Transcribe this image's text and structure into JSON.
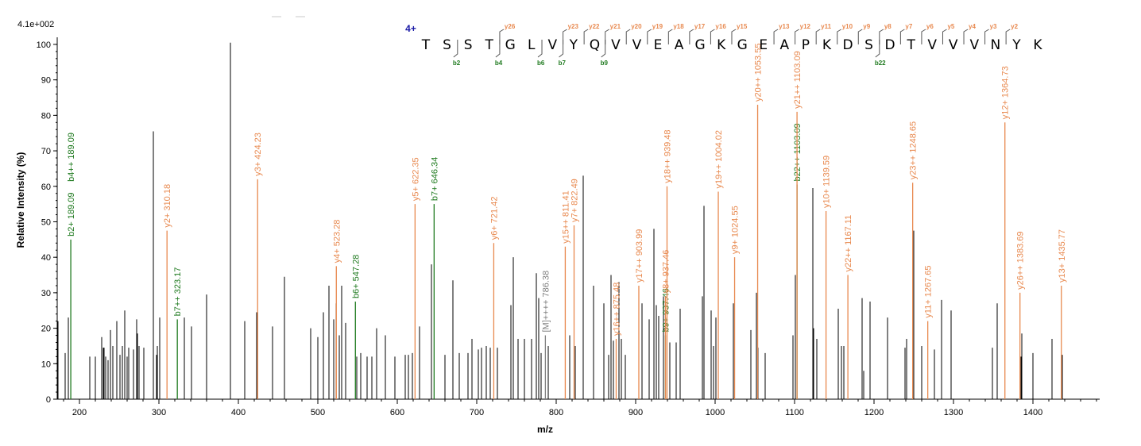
{
  "colors": {
    "unlabeled": "#000000",
    "y_ion": "#e8894f",
    "b_ion": "#1f7a1f",
    "precursor": "#808080",
    "charge": "#1a1aa6"
  },
  "header": {
    "max_intensity": "4.1e+002"
  },
  "peptide": {
    "charge": "4+",
    "sequence": [
      "T",
      "S",
      "S",
      "T",
      "G",
      "L",
      "V",
      "Y",
      "Q",
      "V",
      "V",
      "E",
      "A",
      "G",
      "K",
      "G",
      "E",
      "A",
      "P",
      "K",
      "D",
      "S",
      "D",
      "T",
      "V",
      "V",
      "V",
      "N",
      "Y",
      "K"
    ],
    "y_marks": [
      {
        "after": 4,
        "label": "y26"
      },
      {
        "after": 7,
        "label": "y23"
      },
      {
        "after": 8,
        "label": "y22"
      },
      {
        "after": 9,
        "label": "y21"
      },
      {
        "after": 10,
        "label": "y20"
      },
      {
        "after": 11,
        "label": "y19"
      },
      {
        "after": 12,
        "label": "y18"
      },
      {
        "after": 13,
        "label": "y17"
      },
      {
        "after": 14,
        "label": "y16"
      },
      {
        "after": 15,
        "label": "y15"
      },
      {
        "after": 17,
        "label": "y13"
      },
      {
        "after": 18,
        "label": "y12"
      },
      {
        "after": 19,
        "label": "y11"
      },
      {
        "after": 20,
        "label": "y10"
      },
      {
        "after": 21,
        "label": "y9"
      },
      {
        "after": 22,
        "label": "y8"
      },
      {
        "after": 23,
        "label": "y7"
      },
      {
        "after": 24,
        "label": "y6"
      },
      {
        "after": 25,
        "label": "y5"
      },
      {
        "after": 26,
        "label": "y4"
      },
      {
        "after": 27,
        "label": "y3"
      },
      {
        "after": 28,
        "label": "y2"
      }
    ],
    "b_marks": [
      {
        "after": 2,
        "label": "b2"
      },
      {
        "after": 4,
        "label": "b4"
      },
      {
        "after": 6,
        "label": "b6"
      },
      {
        "after": 7,
        "label": "b7"
      },
      {
        "after": 9,
        "label": "b9"
      },
      {
        "after": 22,
        "label": "b22"
      }
    ]
  },
  "chart_data": {
    "type": "bar",
    "xlabel": "m/z",
    "ylabel": "Relative   Intensity (%)",
    "xlim": [
      172,
      1484
    ],
    "ylim": [
      0,
      102
    ],
    "xticks": [
      200,
      300,
      400,
      500,
      600,
      700,
      800,
      900,
      1000,
      1100,
      1200,
      1300,
      1400
    ],
    "yticks": [
      0,
      10,
      20,
      30,
      40,
      50,
      60,
      70,
      80,
      90,
      100
    ],
    "labeled_peaks": [
      {
        "mz": 189.09,
        "intensity": 45,
        "ion": "b",
        "labels": [
          "b2+ 189.09",
          "b4++ 189.09"
        ]
      },
      {
        "mz": 310.18,
        "intensity": 47.5,
        "ion": "y",
        "labels": [
          "y2+ 310.18"
        ]
      },
      {
        "mz": 323.17,
        "intensity": 22.5,
        "ion": "b",
        "labels": [
          "b7++ 323.17"
        ]
      },
      {
        "mz": 424.23,
        "intensity": 62,
        "ion": "y",
        "labels": [
          "y3+ 424.23"
        ]
      },
      {
        "mz": 523.28,
        "intensity": 37.5,
        "ion": "y",
        "labels": [
          "y4+ 523.28"
        ]
      },
      {
        "mz": 547.28,
        "intensity": 27.5,
        "ion": "b",
        "labels": [
          "b6+ 547.28"
        ]
      },
      {
        "mz": 622.35,
        "intensity": 55,
        "ion": "y",
        "labels": [
          "y5+ 622.35"
        ]
      },
      {
        "mz": 646.34,
        "intensity": 55,
        "ion": "b",
        "labels": [
          "b7+ 646.34"
        ]
      },
      {
        "mz": 721.42,
        "intensity": 44,
        "ion": "y",
        "labels": [
          "y6+ 721.42"
        ]
      },
      {
        "mz": 786.38,
        "intensity": 18,
        "ion": "precursor",
        "labels": [
          "[M]++++ 786.38"
        ]
      },
      {
        "mz": 811.41,
        "intensity": 43,
        "ion": "y",
        "labels": [
          "y15++ 811.41"
        ]
      },
      {
        "mz": 822.49,
        "intensity": 49,
        "ion": "y",
        "labels": [
          "y7+ 822.49"
        ]
      },
      {
        "mz": 875.48,
        "intensity": 17,
        "ion": "y",
        "labels": [
          "y16++ 875.48"
        ]
      },
      {
        "mz": 903.99,
        "intensity": 32,
        "ion": "y",
        "labels": [
          "y17++ 903.99"
        ]
      },
      {
        "mz": 937.46,
        "intensity": 18,
        "ion": "b",
        "labels": [
          "b9+ 937.46"
        ]
      },
      {
        "mz": 937.46,
        "intensity": 29,
        "ion": "y",
        "labels": [
          "y8+ 937.46"
        ]
      },
      {
        "mz": 939.48,
        "intensity": 60,
        "ion": "y",
        "labels": [
          "y18++ 939.48"
        ]
      },
      {
        "mz": 1004.02,
        "intensity": 58.5,
        "ion": "y",
        "labels": [
          "y19++ 1004.02"
        ]
      },
      {
        "mz": 1024.55,
        "intensity": 40,
        "ion": "y",
        "labels": [
          "y9+ 1024.55"
        ]
      },
      {
        "mz": 1053.55,
        "intensity": 83,
        "ion": "y",
        "labels": [
          "y20++ 1053.55"
        ]
      },
      {
        "mz": 1103.09,
        "intensity": 60.5,
        "ion": "b",
        "labels": [
          "b22++ 1103.09"
        ]
      },
      {
        "mz": 1103.09,
        "intensity": 81,
        "ion": "y",
        "labels": [
          "y21++ 1103.09"
        ]
      },
      {
        "mz": 1139.59,
        "intensity": 53,
        "ion": "y",
        "labels": [
          "y10+ 1139.59"
        ]
      },
      {
        "mz": 1167.11,
        "intensity": 35,
        "ion": "y",
        "labels": [
          "y22++ 1167.11"
        ]
      },
      {
        "mz": 1248.65,
        "intensity": 61,
        "ion": "y",
        "labels": [
          "y23++ 1248.65"
        ]
      },
      {
        "mz": 1267.65,
        "intensity": 22,
        "ion": "y",
        "labels": [
          "y11+ 1267.65"
        ]
      },
      {
        "mz": 1364.73,
        "intensity": 78,
        "ion": "y",
        "labels": [
          "y12+ 1364.73"
        ]
      },
      {
        "mz": 1383.69,
        "intensity": 30,
        "ion": "y",
        "labels": [
          "y26++ 1383.69"
        ]
      },
      {
        "mz": 1435.77,
        "intensity": 32,
        "ion": "y",
        "labels": [
          "y13+ 1435.77"
        ]
      }
    ],
    "unlabeled_peaks": [
      [
        173,
        22
      ],
      [
        182,
        13
      ],
      [
        186,
        23
      ],
      [
        213,
        12
      ],
      [
        220,
        12
      ],
      [
        228,
        17.5
      ],
      [
        230,
        14.5
      ],
      [
        231,
        14.5
      ],
      [
        233,
        12
      ],
      [
        236,
        11
      ],
      [
        239,
        19.5
      ],
      [
        242,
        15
      ],
      [
        247,
        22
      ],
      [
        251,
        12.5
      ],
      [
        254,
        15
      ],
      [
        257,
        25
      ],
      [
        260,
        12
      ],
      [
        262,
        14.5
      ],
      [
        268,
        14
      ],
      [
        272,
        22.5
      ],
      [
        273,
        18.5
      ],
      [
        275,
        15
      ],
      [
        281,
        14.5
      ],
      [
        293,
        75.5
      ],
      [
        297,
        12.5
      ],
      [
        298,
        15
      ],
      [
        301,
        23
      ],
      [
        332,
        23
      ],
      [
        341,
        20.5
      ],
      [
        360,
        29.5
      ],
      [
        390,
        100.5
      ],
      [
        408,
        22
      ],
      [
        423,
        24.5
      ],
      [
        443,
        20.5
      ],
      [
        458,
        34.5
      ],
      [
        491,
        20
      ],
      [
        500,
        17.5
      ],
      [
        507,
        24.5
      ],
      [
        514,
        32
      ],
      [
        520,
        22.5
      ],
      [
        523,
        27
      ],
      [
        527,
        18
      ],
      [
        530,
        32
      ],
      [
        535,
        21.5
      ],
      [
        549,
        12
      ],
      [
        554,
        13
      ],
      [
        562,
        12
      ],
      [
        568,
        12
      ],
      [
        574,
        20
      ],
      [
        585,
        18
      ],
      [
        597,
        12
      ],
      [
        610,
        12.5
      ],
      [
        614,
        12.5
      ],
      [
        619,
        13
      ],
      [
        628,
        20.5
      ],
      [
        643,
        38
      ],
      [
        660,
        12.5
      ],
      [
        670,
        33.5
      ],
      [
        678,
        13
      ],
      [
        689,
        13
      ],
      [
        694,
        17
      ],
      [
        702,
        14
      ],
      [
        706,
        14.5
      ],
      [
        712,
        15
      ],
      [
        717,
        14.5
      ],
      [
        726,
        14.5
      ],
      [
        743,
        26.5
      ],
      [
        746,
        40
      ],
      [
        752,
        17
      ],
      [
        760,
        17
      ],
      [
        769,
        17
      ],
      [
        775,
        35.5
      ],
      [
        778,
        28.5
      ],
      [
        781,
        13
      ],
      [
        790,
        15
      ],
      [
        817,
        18
      ],
      [
        824,
        15
      ],
      [
        834,
        63
      ],
      [
        847,
        32
      ],
      [
        860,
        27
      ],
      [
        866,
        12.5
      ],
      [
        869,
        35
      ],
      [
        872,
        16.5
      ],
      [
        879,
        33
      ],
      [
        882,
        17
      ],
      [
        887,
        12.5
      ],
      [
        908,
        27
      ],
      [
        917,
        22.5
      ],
      [
        923,
        48
      ],
      [
        926,
        26.5
      ],
      [
        929,
        23.5
      ],
      [
        935,
        29
      ],
      [
        943,
        16
      ],
      [
        951,
        16
      ],
      [
        956,
        25.5
      ],
      [
        984,
        29
      ],
      [
        986,
        54.5
      ],
      [
        995,
        25
      ],
      [
        998,
        15
      ],
      [
        1001,
        23
      ],
      [
        1023,
        27
      ],
      [
        1045,
        19.5
      ],
      [
        1052,
        30
      ],
      [
        1054,
        14.5
      ],
      [
        1063,
        13
      ],
      [
        1098,
        18
      ],
      [
        1101,
        35
      ],
      [
        1123,
        59.5
      ],
      [
        1124,
        20
      ],
      [
        1128,
        17
      ],
      [
        1155,
        25.5
      ],
      [
        1159,
        15
      ],
      [
        1162,
        15
      ],
      [
        1185,
        28.5
      ],
      [
        1187,
        8
      ],
      [
        1195,
        27.5
      ],
      [
        1217,
        23
      ],
      [
        1239,
        14.5
      ],
      [
        1241,
        17
      ],
      [
        1250,
        47.5
      ],
      [
        1260,
        15
      ],
      [
        1276,
        14
      ],
      [
        1285,
        28
      ],
      [
        1297,
        25
      ],
      [
        1349,
        14.5
      ],
      [
        1355,
        27
      ],
      [
        1386,
        18.5
      ],
      [
        1385,
        12
      ],
      [
        1400,
        13
      ],
      [
        1424,
        17
      ],
      [
        1437,
        12.5
      ]
    ]
  }
}
